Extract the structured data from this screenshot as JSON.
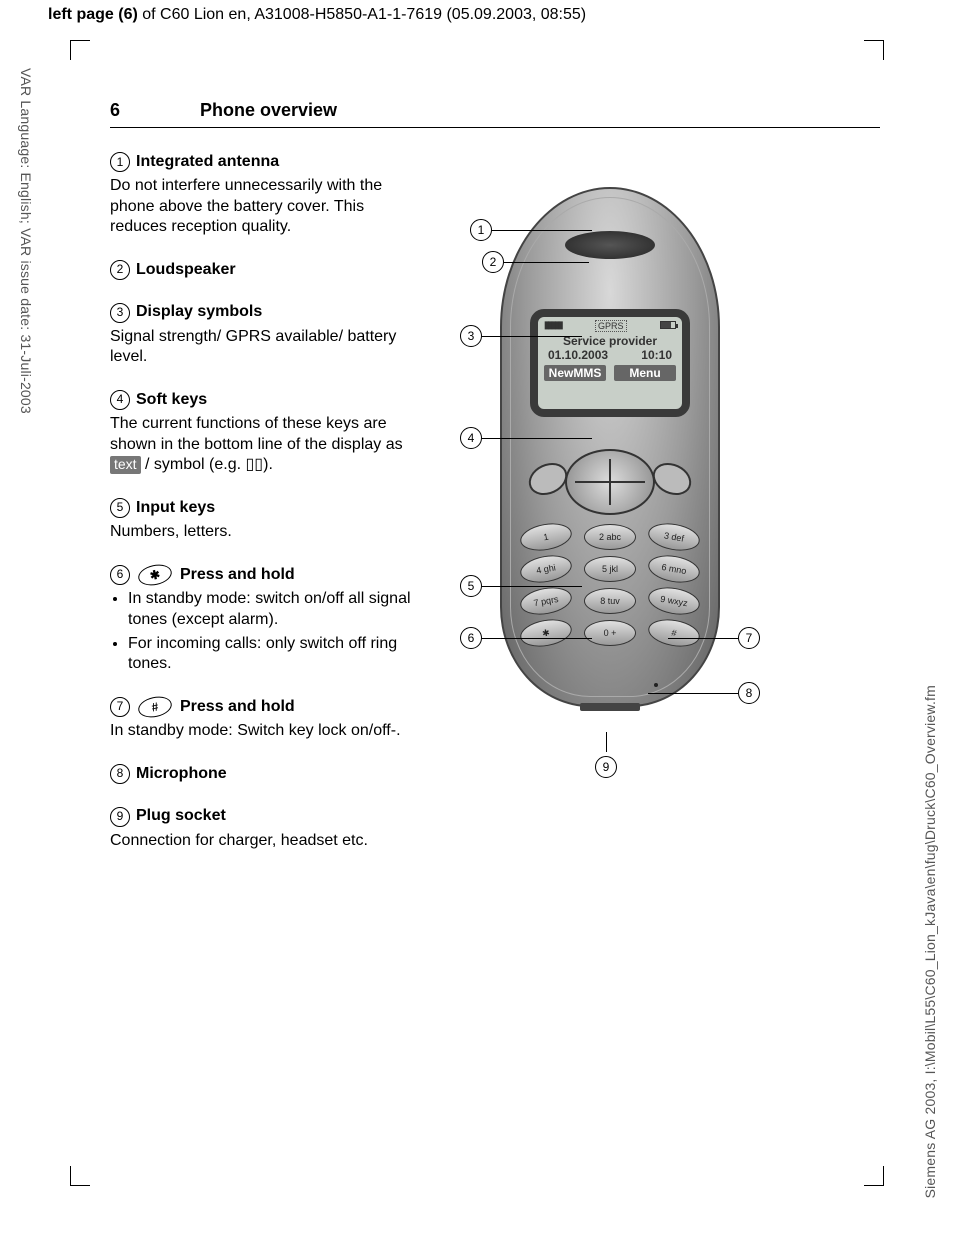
{
  "header": {
    "prefix_bold": "left page (6)",
    "rest": " of C60 Lion en, A31008-H5850-A1-1-7619 (05.09.2003, 08:55)"
  },
  "side_left": "VAR Language: English; VAR issue date: 31-Juli-2003",
  "side_right": "Siemens AG 2003, I:\\Mobil\\L55\\C60_Lion_kJava\\en\\fug\\Druck\\C60_Overview.fm",
  "page": {
    "number": "6",
    "title": "Phone overview"
  },
  "items": {
    "i1": {
      "num": "1",
      "title": "Integrated antenna",
      "body": "Do not interfere unnecessarily with the phone above the  battery cover. This reduces reception quality."
    },
    "i2": {
      "num": "2",
      "title": "Loudspeaker"
    },
    "i3": {
      "num": "3",
      "title": "Display symbols",
      "body": "Signal strength/ GPRS available/ battery level."
    },
    "i4": {
      "num": "4",
      "title": "Soft keys",
      "body_a": "The current functions of these keys are shown in the bottom line of the display as ",
      "chip": "text",
      "body_b": " / symbol (e.g. ",
      "body_c": ")."
    },
    "i5": {
      "num": "5",
      "title": "Input keys",
      "body": "Numbers, letters."
    },
    "i6": {
      "num": "6",
      "key": "✱",
      "title": "Press and hold",
      "b1": "In standby mode: switch on/off all signal tones (except alarm).",
      "b2": "For incoming calls: only switch off ring tones."
    },
    "i7": {
      "num": "7",
      "key": "#",
      "title": "Press and hold",
      "body": "In standby mode: Switch key lock on/off-."
    },
    "i8": {
      "num": "8",
      "title": "Microphone"
    },
    "i9": {
      "num": "9",
      "title": "Plug socket",
      "body": "Connection for charger, headset etc."
    }
  },
  "phone": {
    "gprs": "GPRS",
    "provider": "Service provider",
    "date": "01.10.2003",
    "time": "10:10",
    "sk_left": "NewMMS",
    "sk_right": "Menu",
    "keys": [
      [
        "1",
        "2 abc",
        "3 def"
      ],
      [
        "4 ghi",
        "5 jkl",
        "6 mno"
      ],
      [
        "7 pqrs",
        "8 tuv",
        "9 wxyz"
      ],
      [
        "✱",
        "0 +",
        "#"
      ]
    ],
    "callouts": [
      "1",
      "2",
      "3",
      "4",
      "5",
      "6",
      "7",
      "8",
      "9"
    ]
  },
  "book_icon": "⌂"
}
